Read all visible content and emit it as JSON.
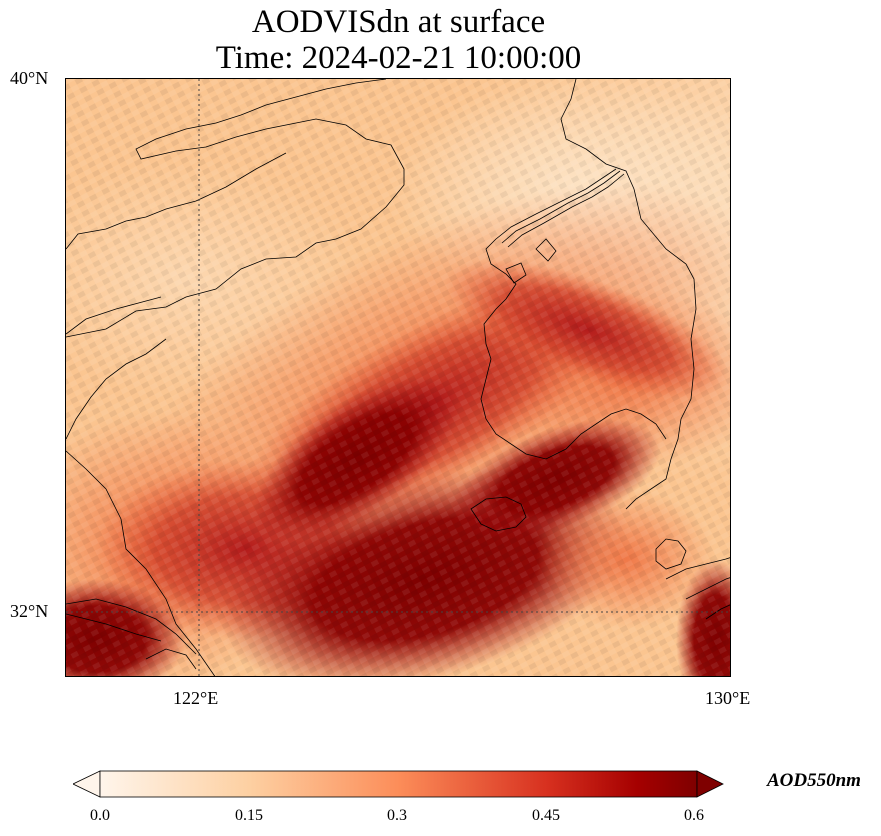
{
  "title_line1": "AODVISdn at surface",
  "title_line2": "Time: 2024-02-21 10:00:00",
  "lat_labels": [
    "40°N",
    "32°N"
  ],
  "lon_labels": [
    "122°E",
    "130°E"
  ],
  "colorbar": {
    "label": "AOD550nm",
    "ticks": [
      "0.0",
      "0.15",
      "0.3",
      "0.45",
      "0.6"
    ],
    "range": [
      0.0,
      0.6
    ],
    "colormap": [
      "#fff5eb",
      "#fdd0a2",
      "#fd8d3c",
      "#d94801",
      "#a50f15",
      "#7f0000"
    ]
  },
  "colors": {
    "coast": "#000000",
    "grid": "#444444"
  }
}
